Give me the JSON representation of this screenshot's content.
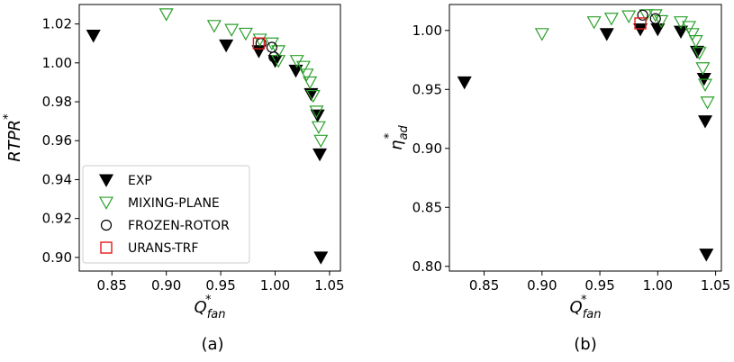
{
  "legend": {
    "entries": [
      {
        "label": "EXP",
        "marker": "triangle-down-filled",
        "color": "#000000"
      },
      {
        "label": "MIXING-PLANE",
        "marker": "triangle-down-open",
        "color": "#2ca02c"
      },
      {
        "label": "FROZEN-ROTOR",
        "marker": "circle-open",
        "color": "#000000"
      },
      {
        "label": "URANS-TRF",
        "marker": "square-open",
        "color": "#e31a1c"
      }
    ],
    "placement": "lower-left of panel (a)"
  },
  "chart_data": [
    {
      "type": "scatter",
      "panel_label": "(a)",
      "xlabel": {
        "base": "Q",
        "sup": "*",
        "sub": "fan"
      },
      "ylabel": {
        "base": "RTPR",
        "sup": "*"
      },
      "xlim": [
        0.82,
        1.06
      ],
      "ylim": [
        0.893,
        1.03
      ],
      "xticks": [
        0.85,
        0.9,
        0.95,
        1.0,
        1.05
      ],
      "xtick_labels": [
        "0.85",
        "0.90",
        "0.95",
        "1.00",
        "1.05"
      ],
      "yticks": [
        0.9,
        0.92,
        0.94,
        0.96,
        0.98,
        1.0,
        1.02
      ],
      "ytick_labels": [
        "0.90",
        "0.92",
        "0.94",
        "0.96",
        "0.98",
        "1.00",
        "1.02"
      ],
      "grid": false,
      "series": [
        {
          "name": "EXP",
          "points": [
            [
              0.833,
              1.014
            ],
            [
              0.955,
              1.009
            ],
            [
              0.985,
              1.006
            ],
            [
              1.0,
              1.001
            ],
            [
              1.019,
              0.996
            ],
            [
              1.033,
              0.984
            ],
            [
              1.039,
              0.973
            ],
            [
              1.041,
              0.953
            ],
            [
              1.042,
              0.9
            ]
          ]
        },
        {
          "name": "MIXING-PLANE",
          "points": [
            [
              0.9,
              1.025
            ],
            [
              0.944,
              1.019
            ],
            [
              0.96,
              1.017
            ],
            [
              0.973,
              1.015
            ],
            [
              0.986,
              1.012
            ],
            [
              0.997,
              1.01
            ],
            [
              1.003,
              1.006
            ],
            [
              1.003,
              1.001
            ],
            [
              1.02,
              1.001
            ],
            [
              1.026,
              0.998
            ],
            [
              1.029,
              0.994
            ],
            [
              1.032,
              0.99
            ],
            [
              1.035,
              0.983
            ],
            [
              1.038,
              0.975
            ],
            [
              1.04,
              0.967
            ],
            [
              1.042,
              0.96
            ]
          ]
        },
        {
          "name": "FROZEN-ROTOR",
          "points": [
            [
              0.987,
              1.01
            ],
            [
              0.997,
              1.008
            ],
            [
              0.999,
              1.003
            ]
          ]
        },
        {
          "name": "URANS-TRF",
          "points": [
            [
              0.985,
              1.01
            ]
          ]
        }
      ]
    },
    {
      "type": "scatter",
      "panel_label": "(b)",
      "xlabel": {
        "base": "Q",
        "sup": "*",
        "sub": "fan"
      },
      "ylabel": {
        "base": "η",
        "sup": "*",
        "sub": "ad"
      },
      "xlim": [
        0.82,
        1.055
      ],
      "ylim": [
        0.796,
        1.022
      ],
      "xticks": [
        0.85,
        0.9,
        0.95,
        1.0,
        1.05
      ],
      "xtick_labels": [
        "0.85",
        "0.90",
        "0.95",
        "1.00",
        "1.05"
      ],
      "yticks": [
        0.8,
        0.85,
        0.9,
        0.95,
        1.0
      ],
      "ytick_labels": [
        "0.80",
        "0.85",
        "0.90",
        "0.95",
        "1.00"
      ],
      "grid": false,
      "series": [
        {
          "name": "EXP",
          "points": [
            [
              0.833,
              0.956
            ],
            [
              0.956,
              0.997
            ],
            [
              0.985,
              1.001
            ],
            [
              1.0,
              1.001
            ],
            [
              1.02,
              0.999
            ],
            [
              1.034,
              0.982
            ],
            [
              1.04,
              0.959
            ],
            [
              1.041,
              0.923
            ],
            [
              1.042,
              0.81
            ]
          ]
        },
        {
          "name": "MIXING-PLANE",
          "points": [
            [
              0.9,
              0.997
            ],
            [
              0.945,
              1.007
            ],
            [
              0.96,
              1.01
            ],
            [
              0.975,
              1.012
            ],
            [
              0.99,
              1.013
            ],
            [
              0.998,
              1.013
            ],
            [
              1.003,
              1.008
            ],
            [
              1.02,
              1.007
            ],
            [
              1.027,
              1.003
            ],
            [
              1.03,
              0.997
            ],
            [
              1.033,
              0.991
            ],
            [
              1.036,
              0.981
            ],
            [
              1.039,
              0.968
            ],
            [
              1.041,
              0.954
            ],
            [
              1.043,
              0.939
            ]
          ]
        },
        {
          "name": "FROZEN-ROTOR",
          "points": [
            [
              0.987,
              1.013
            ],
            [
              0.998,
              1.01
            ]
          ]
        },
        {
          "name": "URANS-TRF",
          "points": [
            [
              0.985,
              1.006
            ]
          ]
        }
      ]
    }
  ]
}
